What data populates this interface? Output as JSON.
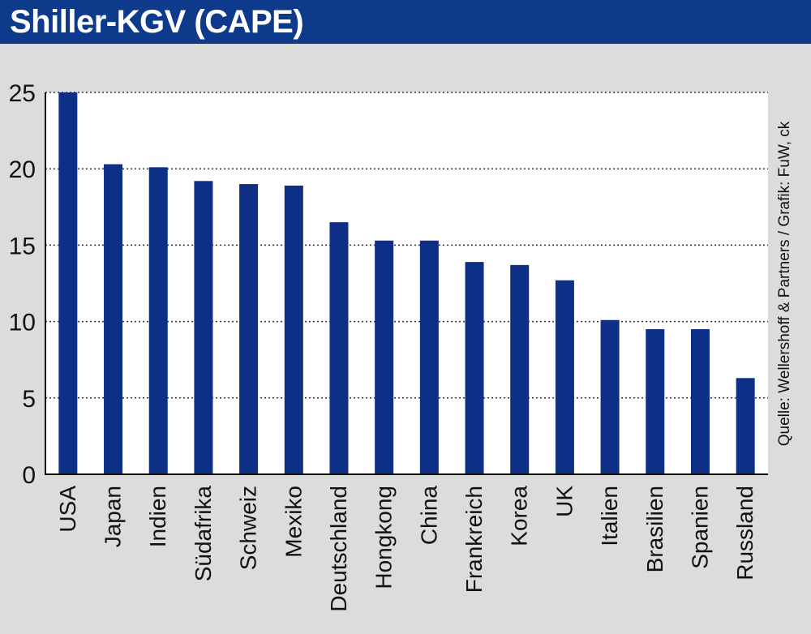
{
  "header": {
    "title": "Shiller-KGV (CAPE)"
  },
  "source": "Quelle: Wellershoff & Partners / Grafik: FuW, ck",
  "colors": {
    "header_bg": "#0d3a8a",
    "bar": "#0d2f86",
    "background": "#dcdcdc",
    "plot_bg": "#ffffff"
  },
  "chart_data": {
    "type": "bar",
    "title": "Shiller-KGV (CAPE)",
    "xlabel": "",
    "ylabel": "",
    "categories": [
      "USA",
      "Japan",
      "Indien",
      "Südafrika",
      "Schweiz",
      "Mexiko",
      "Deutschland",
      "Hongkong",
      "China",
      "Frankreich",
      "Korea",
      "UK",
      "Italien",
      "Brasilien",
      "Spanien",
      "Russland"
    ],
    "values": [
      25.0,
      20.3,
      20.1,
      19.2,
      19.0,
      18.9,
      16.5,
      15.3,
      15.3,
      13.9,
      13.7,
      12.7,
      10.1,
      9.5,
      9.5,
      6.3
    ],
    "ylim": [
      0,
      25
    ],
    "yticks": [
      0,
      5,
      10,
      15,
      20,
      25
    ],
    "grid": true,
    "legend": "none"
  }
}
